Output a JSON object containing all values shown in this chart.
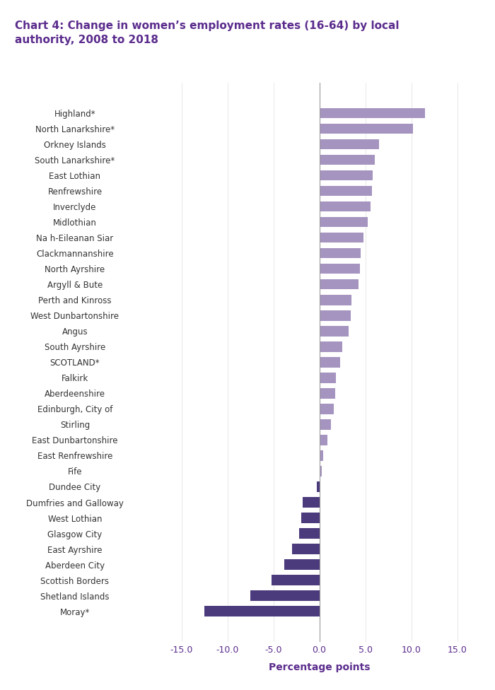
{
  "title": "Chart 4: Change in women’s employment rates (16-64) by local\nauthority, 2008 to 2018",
  "categories": [
    "Highland*",
    "North Lanarkshire*",
    "Orkney Islands",
    "South Lanarkshire*",
    "East Lothian",
    "Renfrewshire",
    "Inverclyde",
    "Midlothian",
    "Na h-Eileanan Siar",
    "Clackmannanshire",
    "North Ayrshire",
    "Argyll & Bute",
    "Perth and Kinross",
    "West Dunbartonshire",
    "Angus",
    "South Ayrshire",
    "SCOTLAND*",
    "Falkirk",
    "Aberdeenshire",
    "Edinburgh, City of",
    "Stirling",
    "East Dunbartonshire",
    "East Renfrewshire",
    "Fife",
    "Dundee City",
    "Dumfries and Galloway",
    "West Lothian",
    "Glasgow City",
    "East Ayrshire",
    "Aberdeen City",
    "Scottish Borders",
    "Shetland Islands",
    "Moray*"
  ],
  "values": [
    11.5,
    10.2,
    6.5,
    6.0,
    5.8,
    5.7,
    5.6,
    5.3,
    4.8,
    4.5,
    4.4,
    4.3,
    3.5,
    3.4,
    3.2,
    2.5,
    2.3,
    1.8,
    1.7,
    1.6,
    1.3,
    0.9,
    0.4,
    0.3,
    -0.3,
    -1.8,
    -2.0,
    -2.2,
    -3.0,
    -3.8,
    -5.2,
    -7.5,
    -12.5
  ],
  "positive_color": "#a594c0",
  "negative_color": "#4b3a7c",
  "xlabel": "Percentage points",
  "xlim": [
    -17.5,
    17.5
  ],
  "xticks": [
    -15.0,
    -10.0,
    -5.0,
    0.0,
    5.0,
    10.0,
    15.0
  ],
  "background_color": "#ffffff",
  "title_color": "#5b2c8d",
  "tick_color": "#5b2c8d",
  "xlabel_color": "#5b2c8d",
  "bar_height": 0.65
}
